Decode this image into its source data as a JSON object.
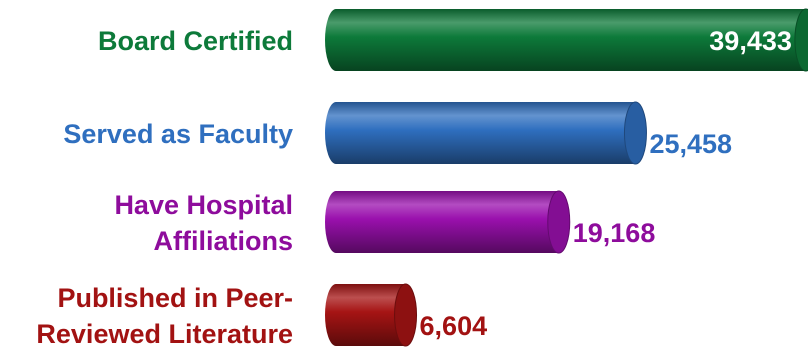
{
  "chart_data": {
    "type": "bar",
    "orientation": "horizontal",
    "style": "3d-cylinder",
    "categories": [
      [
        "Board Certified"
      ],
      [
        "Served as Faculty"
      ],
      [
        "Have Hospital",
        "Affiliations"
      ],
      [
        "Published in Peer-",
        "Reviewed Literature"
      ]
    ],
    "values": [
      39433,
      25458,
      19168,
      6604
    ],
    "value_labels": [
      "39,433",
      "25,458",
      "19,168",
      "6,604"
    ],
    "value_label_position": [
      "inside-end",
      "outside-end",
      "outside-end",
      "outside-end"
    ],
    "colors": [
      "#0d7a3a",
      "#2f6fbf",
      "#9a10ad",
      "#a61414"
    ],
    "label_colors": [
      "#0d7a3a",
      "#2f6fbf",
      "#8e0c9c",
      "#a21212"
    ],
    "value_label_colors": [
      "#ffffff",
      "#2f6fbf",
      "#8e0c9c",
      "#a21212"
    ],
    "xlim": [
      0,
      41000
    ],
    "grid": false,
    "legend": "none"
  }
}
